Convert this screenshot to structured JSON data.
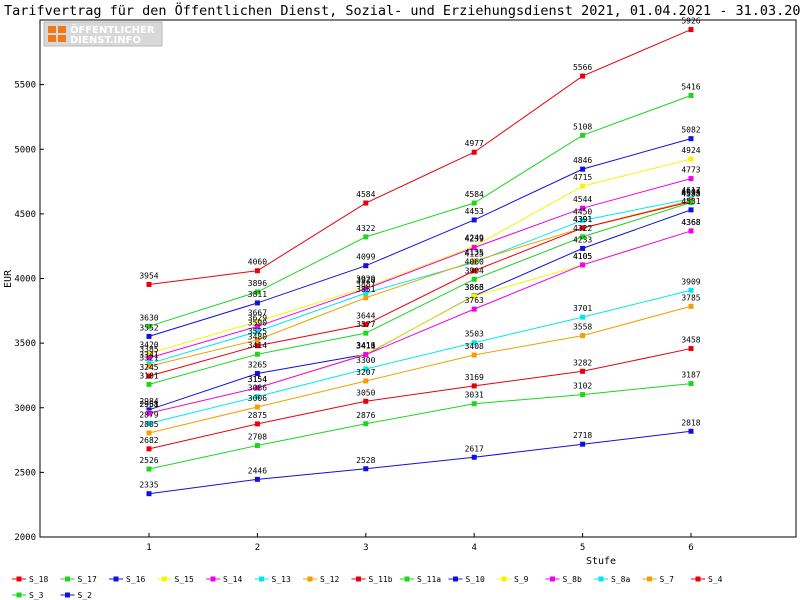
{
  "chart_data": {
    "type": "line",
    "title": "Tarifvertrag für den Öffentlichen Dienst, Sozial- und Erziehungsdienst 2021, 01.04.2021 - 31.03.2022",
    "xlabel": "Stufe",
    "ylabel": "EUR",
    "x": [
      1,
      2,
      3,
      4,
      5,
      6
    ],
    "ylim": [
      2000,
      6000
    ],
    "yticks": [
      2000,
      2500,
      3000,
      3500,
      4000,
      4500,
      5000,
      5500
    ],
    "grid": false,
    "legend_position": "bottom",
    "series": [
      {
        "name": "S_18",
        "color": "#e8000b",
        "values": [
          3954,
          4060,
          4584,
          4977,
          5566,
          5926
        ]
      },
      {
        "name": "S_17",
        "color": "#1ed61e",
        "values": [
          3630,
          3896,
          4322,
          4584,
          5108,
          5416
        ]
      },
      {
        "name": "S_16",
        "color": "#1010e0",
        "values": [
          3552,
          3811,
          4099,
          4453,
          4846,
          5082
        ]
      },
      {
        "name": "S_15",
        "color": "#f5f500",
        "values": [
          3420,
          3667,
          3929,
          4249,
          4715,
          4924
        ]
      },
      {
        "name": "S_14",
        "color": "#f000f0",
        "values": [
          3385,
          3629,
          3920,
          4239,
          4544,
          4773
        ]
      },
      {
        "name": "S_13",
        "color": "#00e8ee",
        "values": [
          3341,
          3590,
          3887,
          4125,
          4450,
          4617
        ]
      },
      {
        "name": "S_12",
        "color": "#f0a000",
        "values": [
          3321,
          3525,
          3851,
          4135,
          4391,
          4604
        ]
      },
      {
        "name": "S_11b",
        "color": "#e8000b",
        "values": [
          3245,
          3480,
          3644,
          4060,
          4391,
          4595
        ]
      },
      {
        "name": "S_11a",
        "color": "#1ed61e",
        "values": [
          3181,
          3414,
          3577,
          3994,
          4322,
          4588
        ]
      },
      {
        "name": "S_10",
        "color": "#1010e0",
        "values": [
          2984,
          3265,
          3413,
          3866,
          4233,
          4531
        ]
      },
      {
        "name": "S_9",
        "color": "#f5f500",
        "values": [
          2961,
          3154,
          3416,
          3863,
          4105,
          4368
        ]
      },
      {
        "name": "S_8b",
        "color": "#f000f0",
        "values": [
          2958,
          3154,
          3411,
          3763,
          4105,
          4368
        ]
      },
      {
        "name": "S_8a",
        "color": "#00e8ee",
        "values": [
          2879,
          3086,
          3300,
          3503,
          3701,
          3909
        ]
      },
      {
        "name": "S_7",
        "color": "#f0a000",
        "values": [
          2805,
          3006,
          3207,
          3408,
          3558,
          3785
        ]
      },
      {
        "name": "S_4",
        "color": "#e8000b",
        "values": [
          2682,
          2875,
          3050,
          3169,
          3282,
          3458
        ]
      },
      {
        "name": "S_3",
        "color": "#1ed61e",
        "values": [
          2526,
          2708,
          2876,
          3031,
          3102,
          3187
        ]
      },
      {
        "name": "S_2",
        "color": "#1010e0",
        "values": [
          2335,
          2446,
          2528,
          2617,
          2718,
          2818
        ]
      }
    ]
  },
  "logo": {
    "line1": "ÖFFENTLICHER",
    "line2": "DIENST.INFO",
    "brand_color": "#f07818"
  }
}
